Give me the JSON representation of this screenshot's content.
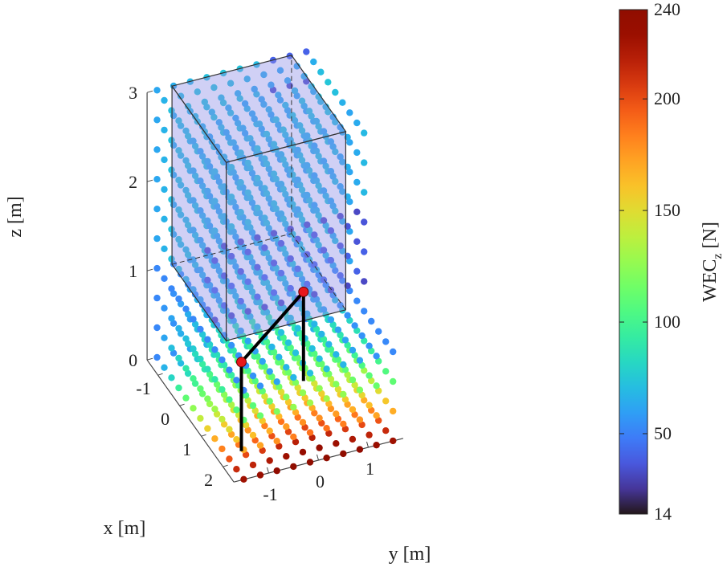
{
  "chart_data": {
    "type": "scatter",
    "projection": "3d",
    "xlabel": "x [m]",
    "ylabel": "y [m]",
    "zlabel": "z [m]",
    "xlim": [
      -1.5,
      2.5
    ],
    "ylim": [
      -1.7,
      1.7
    ],
    "zlim": [
      0,
      3
    ],
    "x_ticks": [
      "-1",
      "0",
      "1",
      "2"
    ],
    "y_ticks": [
      "-1",
      "0",
      "1"
    ],
    "z_ticks": [
      "0",
      "1",
      "2",
      "3"
    ],
    "grid": false,
    "point_grid": {
      "x": [
        -1.5,
        2.5,
        0.333
      ],
      "y": [
        -1.5,
        1.5,
        0.333
      ],
      "z": [
        0,
        3,
        0.333
      ]
    },
    "colorbar": {
      "label_main": "WEC",
      "label_sub": "z",
      "label_unit": "[N]",
      "min": 14,
      "max": 240,
      "ticks": [
        "240",
        "200",
        "150",
        "100",
        "50",
        "14"
      ],
      "colormap": "turbo"
    },
    "box": {
      "x": [
        -1.5,
        1
      ],
      "y": [
        -1.2,
        1.2
      ],
      "z": [
        1,
        3
      ],
      "fill": "#8f8fe6"
    },
    "posts": [
      {
        "x": 1.7,
        "y": -1.2,
        "z_top": 1
      },
      {
        "x": 0.2,
        "y": 0.7,
        "z_top": 1
      }
    ],
    "marker_color": "#e8161b",
    "frame_color": "#000000"
  }
}
